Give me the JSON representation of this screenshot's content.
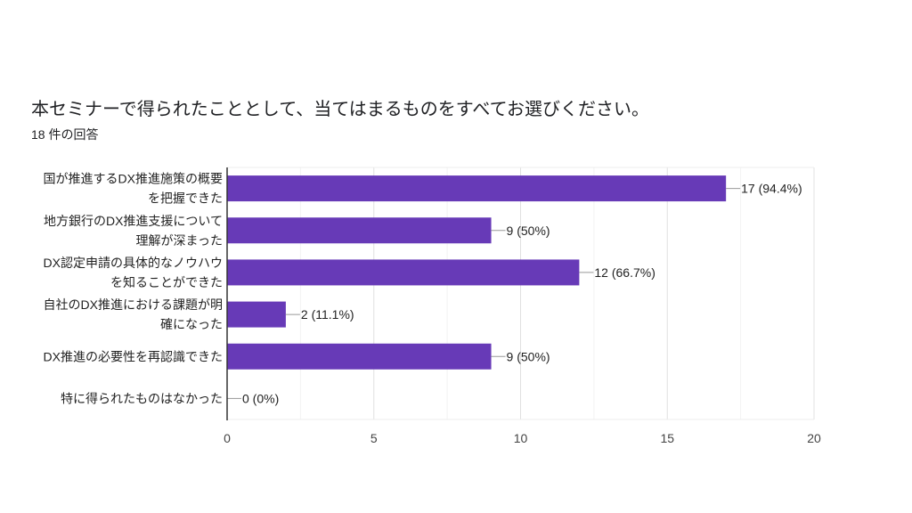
{
  "chart_data": {
    "type": "bar",
    "orientation": "horizontal",
    "title": "本セミナーで得られたこととして、当てはまるものをすべてお選びください。",
    "subtitle": "18 件の回答",
    "categories": [
      [
        "国が推進するDX推進施策の概要",
        "を把握できた"
      ],
      [
        "地方銀行のDX推進支援について",
        "理解が深まった"
      ],
      [
        "DX認定申請の具体的なノウハウ",
        "を知ることができた"
      ],
      [
        "自社のDX推進における課題が明",
        "確になった"
      ],
      [
        "DX推進の必要性を再認識できた"
      ],
      [
        "特に得られたものはなかった"
      ]
    ],
    "values": [
      17,
      9,
      12,
      2,
      9,
      0
    ],
    "data_labels": [
      "17 (94.4%)",
      "9 (50%)",
      "12 (66.7%)",
      "2 (11.1%)",
      "9 (50%)",
      "0 (0%)"
    ],
    "xlim": [
      0,
      20
    ],
    "xticks": [
      0,
      5,
      10,
      15,
      20
    ],
    "grid": true,
    "bar_color": "#673ab7"
  }
}
